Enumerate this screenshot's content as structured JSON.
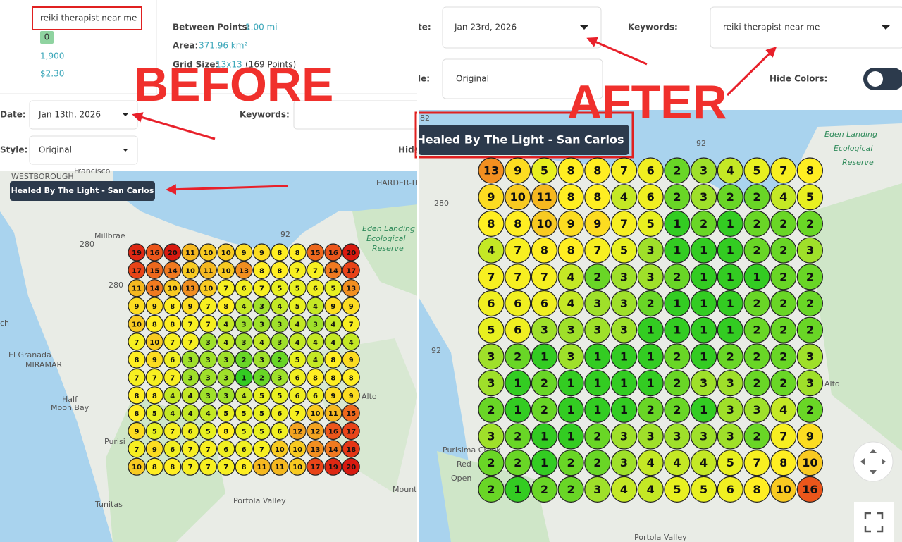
{
  "before": {
    "label": "BEFORE",
    "keyword": "reiki therapist near me",
    "rank_badge": "0",
    "volume": "1,900",
    "cpc": "$2.30",
    "stats": [
      {
        "label": "Between Points:",
        "value": "1.00 mi"
      },
      {
        "label": "Area:",
        "value": "371.96 km²"
      },
      {
        "label": "Grid Size:",
        "value": "13x13",
        "note": "(169 Points)"
      }
    ],
    "date_label": "Date:",
    "date": "Jan 13th, 2026",
    "keywords_label": "Keywords:",
    "style_label": "Style:",
    "style": "Original",
    "hide_label": "Hide",
    "business": "Healed By The Light - San Carlos",
    "map_labels": [
      "Francisco",
      "WESTBOROUGH",
      "HARDER-TEN",
      "Millbrae",
      "Eden Landing",
      "Ecological",
      "Reserve",
      "ch",
      "El Granada",
      "MIRAMAR",
      "Half",
      "Moon Bay",
      "Purisi",
      "Alto",
      "Mounta",
      "Tunitas",
      "Portola Valley",
      "280",
      "280",
      "92"
    ],
    "grid": [
      [
        19,
        16,
        20,
        11,
        10,
        10,
        9,
        9,
        8,
        8,
        15,
        16,
        20
      ],
      [
        17,
        15,
        14,
        10,
        11,
        10,
        13,
        8,
        8,
        7,
        7,
        14,
        17
      ],
      [
        11,
        14,
        10,
        13,
        10,
        7,
        6,
        7,
        5,
        5,
        6,
        5,
        13
      ],
      [
        9,
        9,
        8,
        9,
        7,
        8,
        4,
        3,
        4,
        5,
        4,
        9,
        9
      ],
      [
        10,
        8,
        8,
        7,
        7,
        4,
        3,
        3,
        3,
        4,
        3,
        4,
        7
      ],
      [
        7,
        10,
        7,
        7,
        3,
        4,
        3,
        4,
        3,
        4,
        4,
        4,
        4
      ],
      [
        8,
        9,
        6,
        3,
        3,
        3,
        2,
        3,
        2,
        5,
        4,
        8,
        9
      ],
      [
        7,
        7,
        7,
        3,
        3,
        3,
        1,
        2,
        3,
        6,
        8,
        8,
        8
      ],
      [
        8,
        8,
        4,
        4,
        3,
        3,
        4,
        5,
        5,
        6,
        6,
        9,
        9
      ],
      [
        8,
        5,
        4,
        4,
        4,
        5,
        5,
        5,
        6,
        7,
        10,
        11,
        15
      ],
      [
        9,
        5,
        7,
        6,
        5,
        8,
        5,
        5,
        6,
        12,
        12,
        16,
        17
      ],
      [
        7,
        9,
        6,
        7,
        7,
        6,
        6,
        7,
        10,
        10,
        13,
        14,
        18
      ],
      [
        10,
        8,
        8,
        7,
        7,
        7,
        8,
        11,
        11,
        10,
        17,
        19,
        20
      ]
    ]
  },
  "after": {
    "label": "AFTER",
    "date_label": "te:",
    "date": "Jan 23rd, 2026",
    "keywords_label": "Keywords:",
    "keyword": "reiki therapist near me",
    "style_label": "le:",
    "style": "Original",
    "hide_label": "Hide Colors:",
    "business": "Healed By The Light - San Carlos",
    "map_labels": [
      "Eden Landing",
      "Ecological",
      "Reserve",
      "Alto",
      "Purisima Creek",
      "Red",
      "Open",
      "Portola Valley",
      "82",
      "92",
      "280",
      "92"
    ],
    "grid": [
      [
        13,
        9,
        5,
        8,
        8,
        7,
        6,
        2,
        3,
        4,
        5,
        7,
        8
      ],
      [
        9,
        10,
        11,
        8,
        8,
        4,
        6,
        2,
        3,
        2,
        2,
        4,
        5
      ],
      [
        8,
        8,
        10,
        9,
        9,
        7,
        5,
        1,
        2,
        1,
        2,
        2,
        2
      ],
      [
        4,
        7,
        8,
        8,
        7,
        5,
        3,
        1,
        1,
        1,
        2,
        2,
        3
      ],
      [
        7,
        7,
        7,
        4,
        2,
        3,
        3,
        2,
        1,
        1,
        1,
        2,
        2
      ],
      [
        6,
        6,
        6,
        4,
        3,
        3,
        2,
        1,
        1,
        1,
        2,
        2,
        2
      ],
      [
        5,
        6,
        3,
        3,
        3,
        3,
        1,
        1,
        1,
        1,
        2,
        2,
        2
      ],
      [
        3,
        2,
        1,
        3,
        1,
        1,
        1,
        2,
        1,
        2,
        2,
        2,
        3
      ],
      [
        3,
        1,
        2,
        1,
        1,
        1,
        1,
        2,
        3,
        3,
        2,
        2,
        3
      ],
      [
        2,
        1,
        2,
        1,
        1,
        1,
        2,
        2,
        1,
        3,
        3,
        4,
        2
      ],
      [
        3,
        2,
        1,
        1,
        2,
        3,
        3,
        3,
        3,
        3,
        2,
        7,
        9
      ],
      [
        2,
        2,
        1,
        2,
        2,
        3,
        4,
        4,
        4,
        5,
        7,
        8,
        10
      ],
      [
        2,
        1,
        2,
        2,
        3,
        4,
        4,
        5,
        5,
        6,
        8,
        10,
        16
      ]
    ]
  }
}
